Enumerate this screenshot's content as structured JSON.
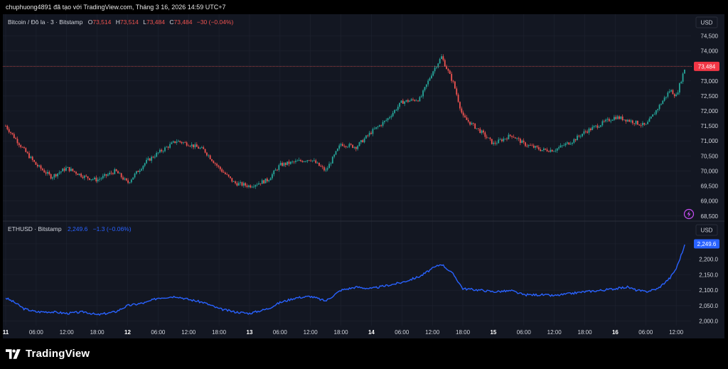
{
  "header": {
    "text": "chuphuong4891 đã tạo với TradingView.com, Tháng 3 16, 2026 14:59 UTC+7"
  },
  "brand": {
    "name": "TradingView"
  },
  "colors": {
    "up": "#26a69a",
    "down": "#ef5350",
    "eth_line": "#2962ff",
    "background": "#131722",
    "grid": "#1f2330",
    "text": "#d1d4dc"
  },
  "icons": {
    "lightning": "lightning-icon",
    "logo": "tradingview-logo-icon"
  },
  "time_axis": {
    "labels": [
      "11",
      "06:00",
      "12:00",
      "18:00",
      "12",
      "06:00",
      "12:00",
      "18:00",
      "13",
      "06:00",
      "12:00",
      "18:00",
      "14",
      "06:00",
      "12:00",
      "18:00",
      "15",
      "06:00",
      "12:00",
      "18:00",
      "16",
      "06:00",
      "12:00"
    ]
  },
  "chart_data": [
    {
      "type": "candlestick",
      "legend": {
        "symbol": "Bitcoin / Đô la · 3 · Bitstamp",
        "o_label": "O",
        "o_value": "73,514",
        "h_label": "H",
        "h_value": "73,514",
        "l_label": "L",
        "l_value": "73,484",
        "c_label": "C",
        "c_value": "73,484",
        "change": "−30 (−0.04%)"
      },
      "currency": "USD",
      "last_price_label": "73,484",
      "last_price": 73484,
      "ylim": [
        68400,
        74700
      ],
      "y_ticks": [
        "74,500",
        "74,000",
        "73,500",
        "73,000",
        "72,500",
        "72,000",
        "71,500",
        "71,000",
        "70,500",
        "70,000",
        "69,500",
        "69,000",
        "68,500"
      ],
      "y_tick_values": [
        74500,
        74000,
        73500,
        73000,
        72500,
        72000,
        71500,
        71000,
        70500,
        70000,
        69500,
        69000,
        68500
      ],
      "x": [
        0,
        0.3,
        0.6,
        1,
        1.5,
        2,
        2.6,
        3,
        3.6,
        4,
        4.6,
        5,
        5.6,
        6,
        6.5,
        7,
        7.5,
        8,
        8.6,
        9,
        9.5,
        10,
        10.5,
        11,
        11.5,
        12,
        12.5,
        13,
        13.6,
        14,
        14.3,
        14.7,
        15,
        15.6,
        16,
        16.6,
        17,
        17.6,
        18,
        18.6,
        19,
        19.6,
        20,
        20.4,
        20.7,
        21,
        21.4,
        21.8,
        22,
        22.3
      ],
      "values": [
        71500,
        71100,
        70700,
        70200,
        69800,
        70100,
        69800,
        69700,
        70000,
        69600,
        70300,
        70600,
        71000,
        70900,
        70700,
        70100,
        69600,
        69500,
        69700,
        70200,
        70300,
        70400,
        70000,
        70900,
        70800,
        71300,
        71700,
        72300,
        72400,
        73300,
        73800,
        72900,
        71800,
        71300,
        70900,
        71200,
        70900,
        70700,
        70700,
        71000,
        71300,
        71600,
        71800,
        71700,
        71600,
        71500,
        72100,
        72700,
        72500,
        73484
      ]
    },
    {
      "type": "line",
      "legend": {
        "symbol": "ETHUSD · Bitstamp",
        "value": "2,249.6",
        "change": "−1.3 (−0.06%)"
      },
      "currency": "USD",
      "last_price_label": "2,249.6",
      "last_price": 2249.6,
      "ylim": [
        1990,
        2275
      ],
      "y_ticks": [
        "2,250.0",
        "2,200.0",
        "2,150.0",
        "2,100.0",
        "2,050.0",
        "2,000.0"
      ],
      "y_tick_values": [
        2250,
        2200,
        2150,
        2100,
        2050,
        2000
      ],
      "x": [
        0,
        0.3,
        0.6,
        1,
        1.5,
        2,
        2.6,
        3,
        3.6,
        4,
        4.6,
        5,
        5.6,
        6,
        6.5,
        7,
        7.5,
        8,
        8.6,
        9,
        9.5,
        10,
        10.5,
        11,
        11.5,
        12,
        12.5,
        13,
        13.6,
        14,
        14.3,
        14.7,
        15,
        15.6,
        16,
        16.6,
        17,
        17.6,
        18,
        18.6,
        19,
        19.6,
        20,
        20.4,
        20.7,
        21,
        21.4,
        21.8,
        22,
        22.3
      ],
      "values": [
        2075,
        2060,
        2040,
        2030,
        2030,
        2025,
        2030,
        2020,
        2030,
        2050,
        2060,
        2075,
        2080,
        2070,
        2060,
        2040,
        2030,
        2025,
        2040,
        2060,
        2075,
        2080,
        2065,
        2100,
        2110,
        2105,
        2115,
        2125,
        2145,
        2170,
        2185,
        2150,
        2105,
        2100,
        2095,
        2098,
        2085,
        2085,
        2082,
        2090,
        2095,
        2100,
        2105,
        2110,
        2100,
        2095,
        2105,
        2140,
        2170,
        2249.6
      ]
    }
  ]
}
